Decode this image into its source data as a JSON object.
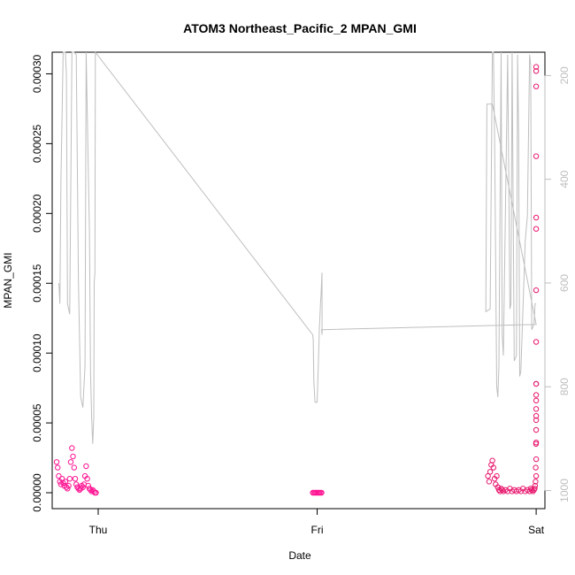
{
  "chart_data": {
    "type": "scatter",
    "title": "ATOM3 Northeast_Pacific_2 MPAN_GMI",
    "xlabel": "Date",
    "ylabel": "MPAN_GMI",
    "x_ticks": [
      "Thu",
      "Fri",
      "Sat"
    ],
    "x_tick_values": [
      0,
      1,
      2
    ],
    "xlim": [
      -0.21,
      2.04
    ],
    "ylim": [
      -1.14e-05,
      0.0003155
    ],
    "y_ticks": [
      0.0,
      5e-05,
      0.0001,
      0.00015,
      0.0002,
      0.00025,
      0.0003
    ],
    "y_tick_labels": [
      "0.00000",
      "0.00005",
      "0.00010",
      "0.00015",
      "0.00020",
      "0.00025",
      "0.00030"
    ],
    "y2_ticks": [
      200,
      400,
      600,
      800,
      1000
    ],
    "y2lim": [
      1035,
      155
    ],
    "y2_color": "#bebebe",
    "grid": false,
    "series": [
      {
        "kind": "points",
        "color": "#ff1493",
        "x": [
          -0.19,
          -0.185,
          -0.18,
          -0.175,
          -0.17,
          -0.165,
          -0.16,
          -0.155,
          -0.15,
          -0.145,
          -0.14,
          -0.135,
          -0.13,
          -0.125,
          -0.12,
          -0.115,
          -0.11,
          -0.105,
          -0.1,
          -0.095,
          -0.09,
          -0.085,
          -0.08,
          -0.075,
          -0.07,
          -0.065,
          -0.06,
          -0.055,
          -0.05,
          -0.045,
          -0.04,
          -0.035,
          -0.03,
          -0.025,
          -0.02,
          -0.015,
          -0.01,
          0.98,
          0.985,
          0.99,
          0.995,
          1.0,
          1.005,
          1.01,
          1.015,
          1.02
        ],
        "y": [
          2.2e-05,
          1.8e-05,
          1.2e-05,
          8e-06,
          6e-06,
          1e-05,
          7e-06,
          5e-06,
          8e-06,
          4e-06,
          3e-06,
          5e-06,
          1e-05,
          2.2e-05,
          3.2e-05,
          2.6e-05,
          1.8e-05,
          1e-05,
          6e-06,
          4e-06,
          3e-06,
          2e-06,
          3e-06,
          5e-06,
          4e-06,
          6e-06,
          1.2e-05,
          1.9e-05,
          1e-05,
          5e-06,
          3e-06,
          2e-06,
          1e-06,
          2e-06,
          1e-06,
          0.0,
          0.0,
          0.0,
          0.0,
          0.0,
          0.0,
          0.0,
          0.0,
          0.0,
          0.0,
          0.0
        ]
      },
      {
        "kind": "points",
        "color": "#e8186e",
        "x": [
          1.78,
          1.785,
          1.79,
          1.795,
          1.8,
          1.805,
          1.81,
          1.815,
          1.82,
          1.825,
          1.83,
          1.835,
          1.84,
          1.845,
          1.85,
          1.86,
          1.87,
          1.88,
          1.89,
          1.9,
          1.91,
          1.92,
          1.93,
          1.94,
          1.95,
          1.96,
          1.97,
          1.975,
          1.98,
          1.985,
          1.99,
          1.993,
          1.995,
          1.997,
          1.998,
          1.999,
          2.0,
          2.0,
          2.0,
          2.0,
          2.0,
          2.0,
          2.0,
          2.0,
          2.0,
          2.0,
          2.0,
          2.0,
          2.0,
          2.0,
          2.0,
          2.0,
          2.0,
          2.0,
          2.0
        ],
        "y": [
          1.2e-05,
          8e-06,
          1.5e-05,
          2e-05,
          2.3e-05,
          1.8e-05,
          1e-05,
          6e-06,
          1.2e-05,
          4e-06,
          2e-06,
          1e-06,
          3e-06,
          2e-06,
          1e-06,
          2e-06,
          1e-06,
          3e-06,
          1e-06,
          2e-06,
          1e-06,
          2e-06,
          1e-06,
          3e-06,
          1e-06,
          2e-06,
          1e-06,
          3e-06,
          2e-06,
          1e-06,
          2e-06,
          3e-06,
          5e-06,
          8e-06,
          1.8e-05,
          3.5e-05,
          5.5e-05,
          6e-05,
          7e-05,
          7.8e-05,
          0.000108,
          0.000145,
          0.000189,
          0.000197,
          0.000241,
          0.000291,
          0.000302,
          0.000305,
          1.2e-05,
          2.4e-05,
          3.6e-05,
          4.5e-05,
          5.2e-05,
          6.6e-05,
          7.8e-05
        ]
      },
      {
        "kind": "line",
        "name": "",
        "color": "#bebebe",
        "axis": "right",
        "x": [
          -0.18,
          -0.178,
          -0.175,
          -0.17,
          -0.16,
          -0.155,
          -0.15,
          -0.145,
          -0.14,
          -0.13,
          -0.12,
          -0.11,
          -0.1,
          -0.09,
          -0.08,
          -0.07,
          -0.06,
          -0.055,
          -0.045,
          -0.04,
          -0.035,
          -0.03,
          -0.025,
          -0.02,
          -0.018,
          -0.015,
          -0.013,
          0.98,
          0.982,
          0.985,
          0.99,
          1.0,
          1.005,
          1.01,
          1.015,
          1.018,
          1.02,
          1.022,
          1.0225,
          1.02,
          2.0,
          1.8,
          1.78,
          1.775,
          1.77,
          1.79,
          1.8,
          1.805,
          1.81,
          1.82,
          1.825,
          1.83,
          1.84,
          1.845,
          1.85,
          1.87,
          1.88,
          1.885,
          1.89,
          1.9,
          1.91,
          1.915,
          1.92,
          1.925,
          1.93,
          1.95,
          1.96,
          1.97,
          1.975,
          1.98,
          1.99,
          1.995,
          2.0
        ],
        "y": [
          600,
          610,
          640,
          400,
          140,
          120,
          100,
          200,
          640,
          660,
          140,
          130,
          160,
          600,
          820,
          840,
          760,
          140,
          380,
          500,
          770,
          860,
          910,
          860,
          600,
          580,
          140,
          700,
          710,
          790,
          830,
          830,
          760,
          690,
          640,
          620,
          600,
          580,
          700,
          690,
          680,
          255,
          255,
          255,
          655,
          650,
          155,
          140,
          320,
          800,
          820,
          760,
          155,
          700,
          740,
          160,
          650,
          640,
          140,
          750,
          740,
          160,
          320,
          780,
          770,
          520,
          470,
          160,
          180,
          690,
          680,
          640,
          640
        ]
      }
    ]
  }
}
